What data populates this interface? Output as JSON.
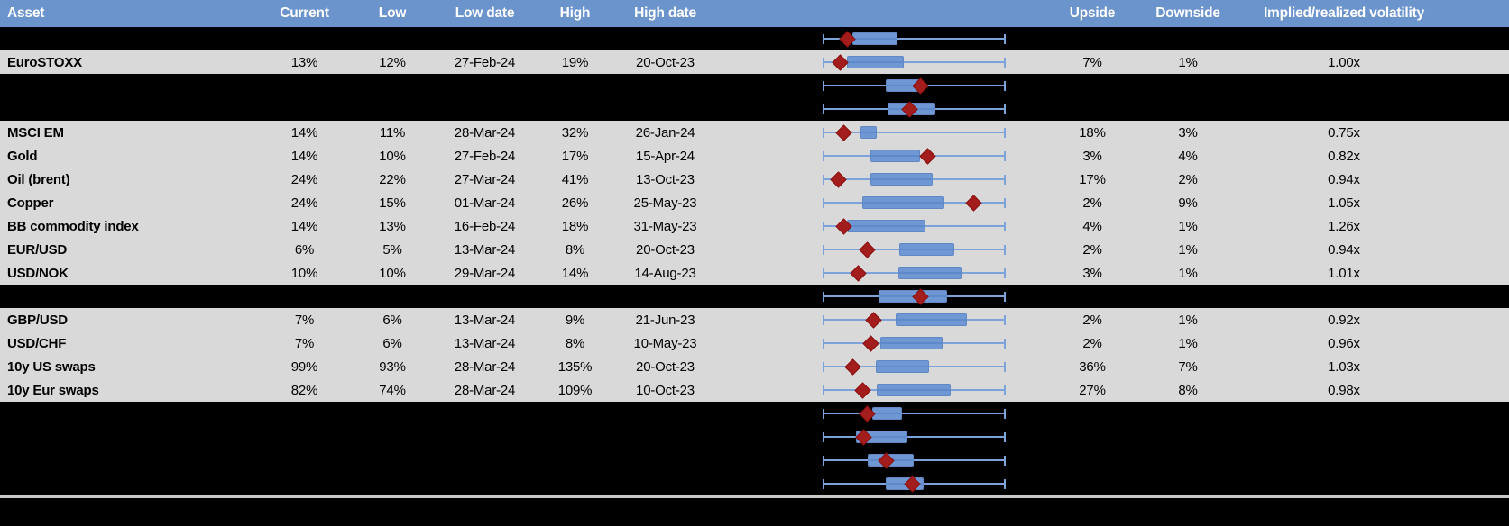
{
  "header": {
    "asset": "Asset",
    "current": "Current",
    "low": "Low",
    "low_date": "Low date",
    "high": "High",
    "high_date": "High date",
    "upside": "Upside",
    "downside": "Downside",
    "impl_real": "Implied/realized volatility"
  },
  "colors": {
    "header_bg": "#6b93cc",
    "row_bg": "#d9d9d9",
    "page_bg": "#000000",
    "whisker": "#7ca3da",
    "box_fill": "#6e97d3",
    "box_median": "#5e8ac9",
    "marker": "#a31d1d",
    "marker_edge": "#8a1212",
    "separator": "#c9c9c9",
    "header_text": "#ffffff",
    "body_text": "#000000"
  },
  "chart_data": {
    "type": "table",
    "columns": [
      "Asset",
      "Current",
      "Low",
      "Low date",
      "High",
      "High date",
      "",
      "Upside",
      "Downside",
      "Implied/realized volatility"
    ],
    "boxplot_encoding": "Each row has a box plot: whiskers span the full low-high range (0 to 1); q1/q3 give the box extent and cur gives the red diamond (current level) as fractions of that span. Rows of type 'spacer' are blacked-out rows that still show a box plot.",
    "legend_position": "none",
    "grid": false,
    "rows": [
      {
        "type": "spacer",
        "box": {
          "q1": 0.163,
          "q3": 0.411,
          "cur": 0.133
        }
      },
      {
        "type": "data",
        "asset": "EuroSTOXX",
        "current": "13%",
        "low": "12%",
        "low_date": "27-Feb-24",
        "high": "19%",
        "high_date": "20-Oct-23",
        "upside": "7%",
        "downside": "1%",
        "impl_real": "1.00x",
        "box": {
          "q1": 0.134,
          "q3": 0.443,
          "cur": 0.098
        }
      },
      {
        "type": "spacer",
        "box": {
          "q1": 0.344,
          "q3": 0.549,
          "cur": 0.533
        }
      },
      {
        "type": "spacer",
        "box": {
          "q1": 0.356,
          "q3": 0.614,
          "cur": 0.475
        }
      },
      {
        "type": "data",
        "asset": "MSCI EM",
        "current": "14%",
        "low": "11%",
        "low_date": "28-Mar-24",
        "high": "32%",
        "high_date": "26-Jan-24",
        "upside": "18%",
        "downside": "3%",
        "impl_real": "0.75x",
        "box": {
          "q1": 0.207,
          "q3": 0.293,
          "cur": 0.117
        }
      },
      {
        "type": "data",
        "asset": "Gold",
        "current": "14%",
        "low": "10%",
        "low_date": "27-Feb-24",
        "high": "17%",
        "high_date": "15-Apr-24",
        "upside": "3%",
        "downside": "4%",
        "impl_real": "0.82x",
        "box": {
          "q1": 0.26,
          "q3": 0.533,
          "cur": 0.573
        }
      },
      {
        "type": "data",
        "asset": "Oil (brent)",
        "current": "24%",
        "low": "22%",
        "low_date": "27-Mar-24",
        "high": "41%",
        "high_date": "13-Oct-23",
        "upside": "17%",
        "downside": "2%",
        "impl_real": "0.94x",
        "box": {
          "q1": 0.263,
          "q3": 0.6,
          "cur": 0.088
        }
      },
      {
        "type": "data",
        "asset": "Copper",
        "current": "24%",
        "low": "15%",
        "low_date": "01-Mar-24",
        "high": "26%",
        "high_date": "25-May-23",
        "upside": "2%",
        "downside": "9%",
        "impl_real": "1.05x",
        "box": {
          "q1": 0.218,
          "q3": 0.663,
          "cur": 0.826
        }
      },
      {
        "type": "data",
        "asset": "BB commodity index",
        "current": "14%",
        "low": "13%",
        "low_date": "16-Feb-24",
        "high": "18%",
        "high_date": "31-May-23",
        "upside": "4%",
        "downside": "1%",
        "impl_real": "1.26x",
        "box": {
          "q1": 0.134,
          "q3": 0.56,
          "cur": 0.117
        }
      },
      {
        "type": "data",
        "asset": "EUR/USD",
        "current": "6%",
        "low": "5%",
        "low_date": "13-Mar-24",
        "high": "8%",
        "high_date": "20-Oct-23",
        "upside": "2%",
        "downside": "1%",
        "impl_real": "0.94x",
        "box": {
          "q1": 0.419,
          "q3": 0.717,
          "cur": 0.244
        }
      },
      {
        "type": "data",
        "asset": "USD/NOK",
        "current": "10%",
        "low": "10%",
        "low_date": "29-Mar-24",
        "high": "14%",
        "high_date": "14-Aug-23",
        "upside": "3%",
        "downside": "1%",
        "impl_real": "1.01x",
        "box": {
          "q1": 0.415,
          "q3": 0.76,
          "cur": 0.194
        }
      },
      {
        "type": "spacer",
        "box": {
          "q1": 0.305,
          "q3": 0.679,
          "cur": 0.533
        }
      },
      {
        "type": "data",
        "asset": "GBP/USD",
        "current": "7%",
        "low": "6%",
        "low_date": "13-Mar-24",
        "high": "9%",
        "high_date": "21-Jun-23",
        "upside": "2%",
        "downside": "1%",
        "impl_real": "0.92x",
        "box": {
          "q1": 0.399,
          "q3": 0.788,
          "cur": 0.28
        }
      },
      {
        "type": "data",
        "asset": "USD/CHF",
        "current": "7%",
        "low": "6%",
        "low_date": "13-Mar-24",
        "high": "8%",
        "high_date": "10-May-23",
        "upside": "2%",
        "downside": "1%",
        "impl_real": "0.96x",
        "box": {
          "q1": 0.316,
          "q3": 0.655,
          "cur": 0.264
        }
      },
      {
        "type": "data",
        "asset": "10y US swaps",
        "current": "99%",
        "low": "93%",
        "low_date": "28-Mar-24",
        "high": "135%",
        "high_date": "20-Oct-23",
        "upside": "36%",
        "downside": "7%",
        "impl_real": "1.03x",
        "box": {
          "q1": 0.288,
          "q3": 0.581,
          "cur": 0.163
        }
      },
      {
        "type": "data",
        "asset": "10y Eur swaps",
        "current": "82%",
        "low": "74%",
        "low_date": "28-Mar-24",
        "high": "109%",
        "high_date": "10-Oct-23",
        "upside": "27%",
        "downside": "8%",
        "impl_real": "0.98x",
        "box": {
          "q1": 0.293,
          "q3": 0.7,
          "cur": 0.22
        }
      },
      {
        "type": "spacer",
        "box": {
          "q1": 0.272,
          "q3": 0.432,
          "cur": 0.244
        }
      },
      {
        "type": "spacer",
        "box": {
          "q1": 0.182,
          "q3": 0.464,
          "cur": 0.223
        }
      },
      {
        "type": "spacer",
        "box": {
          "q1": 0.244,
          "q3": 0.497,
          "cur": 0.349
        }
      },
      {
        "type": "spacer",
        "box": {
          "q1": 0.345,
          "q3": 0.554,
          "cur": 0.492
        }
      }
    ]
  }
}
